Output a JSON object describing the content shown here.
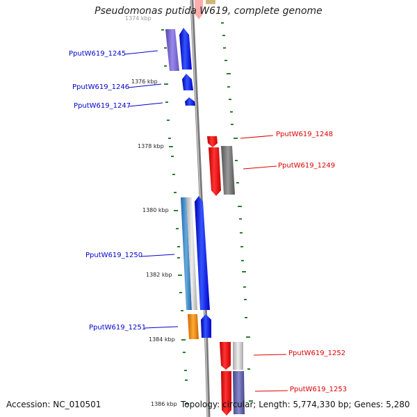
{
  "title": "Pseudomonas putida W619, complete genome",
  "ticks": [
    {
      "label": "1374 kbp"
    },
    {
      "label": "1376 kbp"
    },
    {
      "label": "1378 kbp"
    },
    {
      "label": "1380 kbp"
    },
    {
      "label": "1382 kbp"
    },
    {
      "label": "1384 kbp"
    },
    {
      "label": "1386 kbp"
    }
  ],
  "genes": [
    {
      "name": "PputW619_1245",
      "strand": "left"
    },
    {
      "name": "PputW619_1246",
      "strand": "left"
    },
    {
      "name": "PputW619_1247",
      "strand": "left"
    },
    {
      "name": "PputW619_1248",
      "strand": "right"
    },
    {
      "name": "PputW619_1249",
      "strand": "right"
    },
    {
      "name": "PputW619_1250",
      "strand": "left"
    },
    {
      "name": "PputW619_1251",
      "strand": "left"
    },
    {
      "name": "PputW619_1252",
      "strand": "right"
    },
    {
      "name": "PputW619_1253",
      "strand": "right"
    }
  ],
  "colors": {
    "axis": "#888888",
    "dots": "#2e7d32",
    "left_label": "#0000cc",
    "right_label": "#dd0000"
  },
  "footer": {
    "accession": "Accession: NC_010501",
    "summary": "Topology: circular; Length: 5,774,330 bp; Genes: 5,280"
  }
}
